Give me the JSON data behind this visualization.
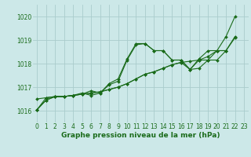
{
  "bg_color": "#cce8e8",
  "grid_color": "#aacccc",
  "line_color": "#1a6b1a",
  "xlabel": "Graphe pression niveau de la mer (hPa)",
  "ylim": [
    1015.5,
    1020.5
  ],
  "xlim": [
    -0.5,
    23.5
  ],
  "yticks": [
    1016,
    1017,
    1018,
    1019,
    1020
  ],
  "xticks": [
    0,
    1,
    2,
    3,
    4,
    5,
    6,
    7,
    8,
    9,
    10,
    11,
    12,
    13,
    14,
    15,
    16,
    17,
    18,
    19,
    20,
    21,
    22,
    23
  ],
  "series": [
    [
      1016.05,
      1016.55,
      1016.6,
      1016.6,
      1016.65,
      1016.75,
      1016.65,
      1016.75,
      1017.15,
      1017.35,
      1018.2,
      1018.85,
      1018.85,
      1018.55,
      1018.55,
      1018.15,
      1018.15,
      1017.75,
      1018.2,
      1018.55,
      1018.55,
      1019.15,
      1020.0,
      null
    ],
    [
      1016.5,
      1016.55,
      1016.6,
      1016.6,
      1016.65,
      1016.7,
      1016.75,
      1016.8,
      1016.9,
      1017.0,
      1017.15,
      1017.35,
      1017.55,
      1017.65,
      1017.8,
      1017.95,
      1018.05,
      1018.1,
      1018.15,
      1018.3,
      1018.55,
      1018.55,
      1019.15,
      null
    ],
    [
      1016.05,
      1016.45,
      1016.6,
      1016.6,
      1016.65,
      1016.7,
      1016.75,
      1016.8,
      1016.9,
      1017.0,
      1017.15,
      1017.35,
      1017.55,
      1017.65,
      1017.8,
      1017.95,
      1018.05,
      1017.75,
      1017.8,
      1018.15,
      1018.15,
      1018.55,
      1019.1,
      null
    ],
    [
      1016.05,
      1016.45,
      1016.6,
      1016.6,
      1016.65,
      1016.7,
      1016.85,
      1016.75,
      1017.1,
      1017.25,
      1018.15,
      1018.8,
      1018.85,
      1018.55,
      1018.55,
      1018.15,
      1018.15,
      1017.75,
      1018.15,
      1018.15,
      1018.55,
      1018.55,
      null,
      null
    ]
  ]
}
